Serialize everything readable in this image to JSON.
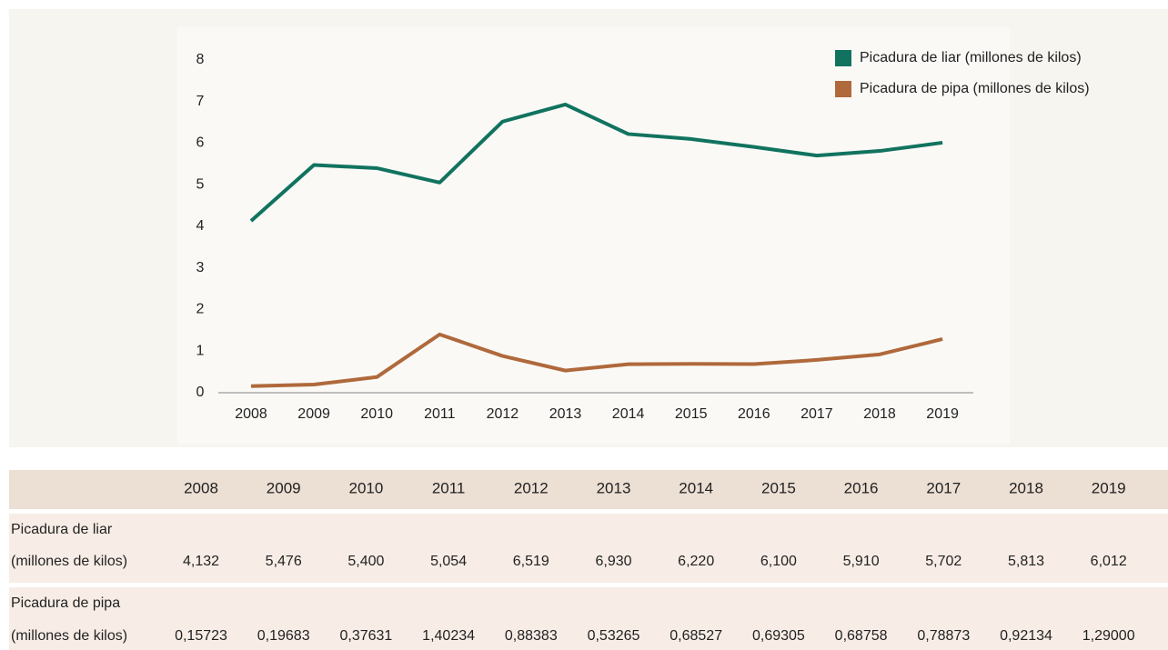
{
  "chart_data": {
    "type": "line",
    "categories": [
      "2008",
      "2009",
      "2010",
      "2011",
      "2012",
      "2013",
      "2014",
      "2015",
      "2016",
      "2017",
      "2018",
      "2019"
    ],
    "series": [
      {
        "name": "Picadura de liar (millones de kilos)",
        "color": "#11735f",
        "values": [
          4.132,
          5.476,
          5.4,
          5.054,
          6.519,
          6.93,
          6.22,
          6.1,
          5.91,
          5.702,
          5.813,
          6.012
        ],
        "value_labels": [
          "4,132",
          "5,476",
          "5,400",
          "5,054",
          "6,519",
          "6,930",
          "6,220",
          "6,100",
          "5,910",
          "5,702",
          "5,813",
          "6,012"
        ]
      },
      {
        "name": "Picadura de pipa (millones de kilos)",
        "color": "#b0693b",
        "values": [
          0.15723,
          0.19683,
          0.37631,
          1.40234,
          0.88383,
          0.53265,
          0.68527,
          0.69305,
          0.68758,
          0.78873,
          0.92134,
          1.29
        ],
        "value_labels": [
          "0,15723",
          "0,19683",
          "0,37631",
          "1,40234",
          "0,88383",
          "0,53265",
          "0,68527",
          "0,69305",
          "0,68758",
          "0,78873",
          "0,92134",
          "1,29000"
        ]
      }
    ],
    "ylim": [
      0,
      8
    ],
    "yticks": [
      0,
      1,
      2,
      3,
      4,
      5,
      6,
      7,
      8
    ],
    "legend": "top-right",
    "grid": false
  },
  "table": {
    "row_labels": [
      [
        "Picadura de liar",
        "(millones de kilos)"
      ],
      [
        "Picadura de pipa",
        "(millones de kilos)"
      ]
    ]
  }
}
